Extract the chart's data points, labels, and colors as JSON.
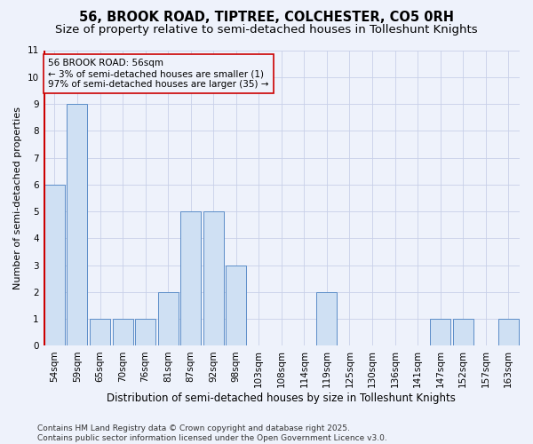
{
  "title1": "56, BROOK ROAD, TIPTREE, COLCHESTER, CO5 0RH",
  "title2": "Size of property relative to semi-detached houses in Tolleshunt Knights",
  "xlabel": "Distribution of semi-detached houses by size in Tolleshunt Knights",
  "ylabel": "Number of semi-detached properties",
  "categories": [
    "54sqm",
    "59sqm",
    "65sqm",
    "70sqm",
    "76sqm",
    "81sqm",
    "87sqm",
    "92sqm",
    "98sqm",
    "103sqm",
    "108sqm",
    "114sqm",
    "119sqm",
    "125sqm",
    "130sqm",
    "136sqm",
    "141sqm",
    "147sqm",
    "152sqm",
    "157sqm",
    "163sqm"
  ],
  "values": [
    6,
    9,
    1,
    1,
    1,
    2,
    5,
    5,
    3,
    0,
    0,
    0,
    2,
    0,
    0,
    0,
    0,
    1,
    1,
    0,
    1
  ],
  "bar_color": "#cfe0f3",
  "bar_edge_color": "#5b8dc8",
  "highlight_index": 0,
  "highlight_color": "#cc0000",
  "annotation_title": "56 BROOK ROAD: 56sqm",
  "annotation_line1": "← 3% of semi-detached houses are smaller (1)",
  "annotation_line2": "97% of semi-detached houses are larger (35) →",
  "ylim": [
    0,
    11
  ],
  "yticks": [
    0,
    1,
    2,
    3,
    4,
    5,
    6,
    7,
    8,
    9,
    10,
    11
  ],
  "footer1": "Contains HM Land Registry data © Crown copyright and database right 2025.",
  "footer2": "Contains public sector information licensed under the Open Government Licence v3.0.",
  "bg_color": "#eef2fb",
  "grid_color": "#c8d0e8",
  "title1_fontsize": 10.5,
  "title2_fontsize": 9.5,
  "xlabel_fontsize": 8.5,
  "ylabel_fontsize": 8,
  "tick_fontsize": 7.5,
  "annotation_fontsize": 7.5,
  "footer_fontsize": 6.5
}
